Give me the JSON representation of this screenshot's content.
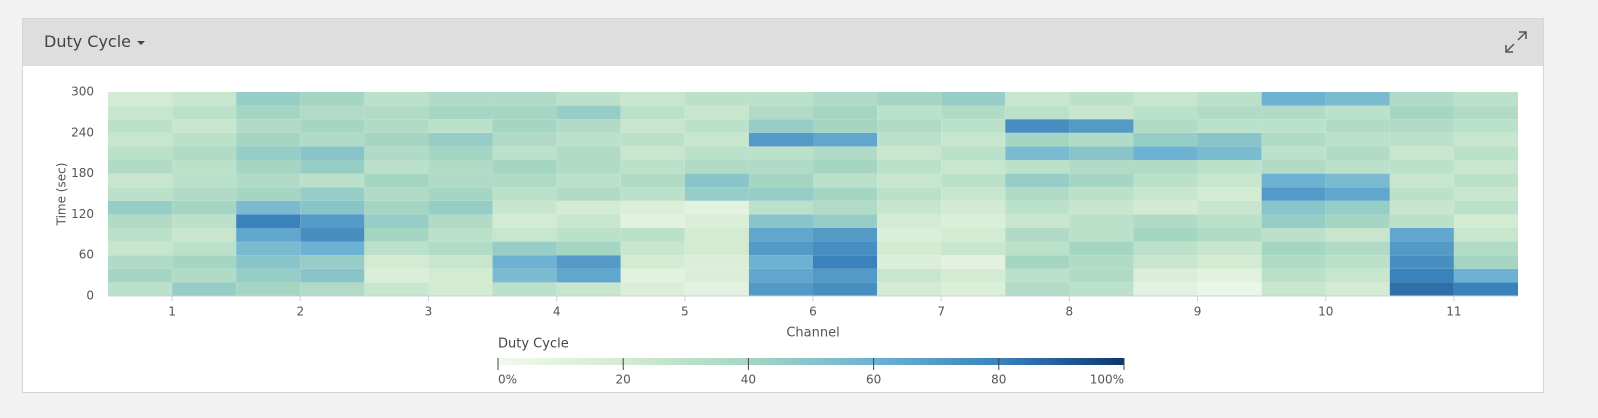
{
  "panel_title": "Duty Cycle",
  "chart_data": {
    "type": "heatmap",
    "xlabel": "Channel",
    "ylabel": "Time (sec)",
    "xlim": [
      0.5,
      11.5
    ],
    "xticks": [
      1,
      2,
      3,
      4,
      5,
      6,
      7,
      8,
      9,
      10,
      11
    ],
    "ylim": [
      0,
      300
    ],
    "yticks": [
      0,
      60,
      120,
      180,
      240,
      300
    ],
    "x": [
      0.75,
      1.25,
      1.75,
      2.25,
      2.75,
      3.25,
      3.75,
      4.25,
      4.75,
      5.25,
      5.75,
      6.25,
      6.75,
      7.25,
      7.75,
      8.25,
      8.75,
      9.25,
      9.75,
      10.25,
      10.75,
      11.25
    ],
    "y": [
      10,
      30,
      50,
      70,
      90,
      110,
      130,
      150,
      170,
      190,
      210,
      230,
      250,
      270,
      290
    ],
    "z": [
      [
        30,
        45,
        40,
        35,
        25,
        20,
        30,
        25,
        15,
        10,
        70,
        75,
        20,
        15,
        35,
        30,
        10,
        5,
        25,
        20,
        85,
        80
      ],
      [
        40,
        35,
        45,
        50,
        15,
        20,
        55,
        65,
        10,
        15,
        65,
        70,
        25,
        20,
        30,
        35,
        15,
        10,
        30,
        25,
        80,
        60
      ],
      [
        35,
        40,
        50,
        45,
        20,
        25,
        60,
        70,
        20,
        15,
        60,
        80,
        15,
        10,
        40,
        35,
        25,
        20,
        35,
        30,
        75,
        40
      ],
      [
        25,
        30,
        55,
        60,
        30,
        35,
        45,
        40,
        25,
        20,
        70,
        75,
        20,
        25,
        30,
        40,
        30,
        25,
        40,
        35,
        70,
        35
      ],
      [
        30,
        25,
        65,
        75,
        40,
        30,
        25,
        30,
        30,
        20,
        65,
        70,
        15,
        20,
        35,
        30,
        40,
        35,
        30,
        25,
        65,
        25
      ],
      [
        35,
        30,
        80,
        70,
        45,
        35,
        20,
        25,
        10,
        15,
        50,
        45,
        20,
        15,
        25,
        30,
        35,
        30,
        45,
        40,
        30,
        20
      ],
      [
        45,
        40,
        55,
        50,
        40,
        45,
        25,
        20,
        15,
        10,
        30,
        35,
        25,
        20,
        30,
        25,
        20,
        25,
        50,
        45,
        25,
        30
      ],
      [
        30,
        35,
        40,
        45,
        35,
        40,
        30,
        35,
        30,
        45,
        45,
        40,
        30,
        25,
        35,
        30,
        25,
        20,
        70,
        65,
        30,
        25
      ],
      [
        25,
        30,
        35,
        30,
        40,
        35,
        35,
        30,
        35,
        50,
        40,
        30,
        25,
        30,
        45,
        40,
        30,
        25,
        60,
        55,
        25,
        30
      ],
      [
        35,
        30,
        40,
        45,
        30,
        35,
        40,
        35,
        30,
        35,
        35,
        40,
        30,
        25,
        30,
        35,
        35,
        30,
        35,
        30,
        30,
        25
      ],
      [
        30,
        35,
        45,
        50,
        35,
        40,
        30,
        35,
        25,
        30,
        30,
        35,
        25,
        30,
        55,
        50,
        60,
        55,
        30,
        35,
        25,
        30
      ],
      [
        25,
        30,
        40,
        35,
        40,
        45,
        35,
        30,
        30,
        25,
        70,
        65,
        30,
        25,
        40,
        35,
        45,
        50,
        35,
        30,
        30,
        25
      ],
      [
        30,
        25,
        35,
        40,
        35,
        30,
        40,
        35,
        25,
        30,
        45,
        40,
        35,
        30,
        75,
        70,
        35,
        30,
        30,
        35,
        35,
        30
      ],
      [
        25,
        30,
        40,
        35,
        35,
        40,
        40,
        45,
        30,
        25,
        35,
        40,
        30,
        35,
        30,
        25,
        30,
        35,
        35,
        30,
        40,
        35
      ],
      [
        20,
        25,
        45,
        40,
        30,
        35,
        35,
        30,
        25,
        30,
        30,
        35,
        40,
        45,
        25,
        30,
        25,
        30,
        60,
        55,
        35,
        30
      ]
    ],
    "colorbar_title": "Duty Cycle",
    "colorbar_lim": [
      0,
      100
    ],
    "colorbar_ticks": [
      {
        "value": 0,
        "label": "0%"
      },
      20,
      40,
      60,
      80,
      {
        "value": 100,
        "label": "100%"
      }
    ],
    "colorscale": [
      [
        0,
        "#f2f9ee"
      ],
      [
        20,
        "#d3ebd1"
      ],
      [
        40,
        "#a5d6c3"
      ],
      [
        60,
        "#6db2d3"
      ],
      [
        80,
        "#3a82bb"
      ],
      [
        100,
        "#0d3670"
      ]
    ]
  }
}
